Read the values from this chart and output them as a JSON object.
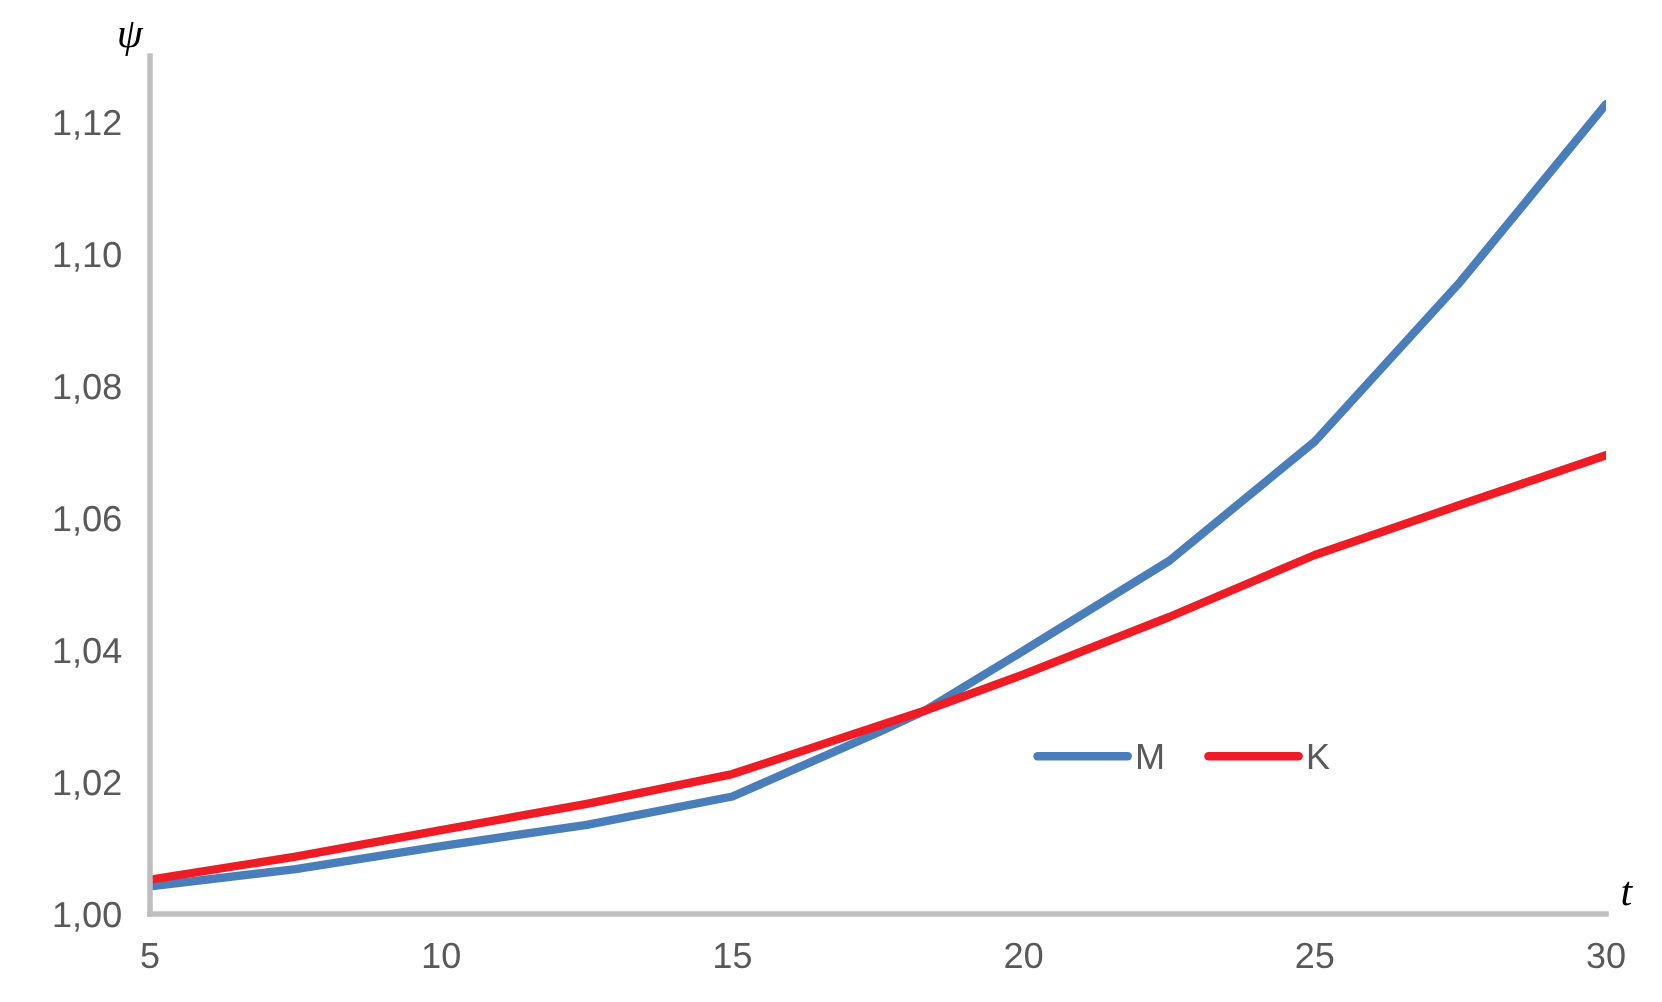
{
  "chart_data": {
    "type": "line",
    "xlabel": "t",
    "ylabel": "ψ",
    "xlim": [
      5,
      30
    ],
    "ylim": [
      1.0,
      1.13
    ],
    "xticks": [
      5,
      10,
      15,
      20,
      25,
      30
    ],
    "yticks": [
      {
        "value": 1.0,
        "label": "1,00"
      },
      {
        "value": 1.02,
        "label": "1,02"
      },
      {
        "value": 1.04,
        "label": "1,04"
      },
      {
        "value": 1.06,
        "label": "1,06"
      },
      {
        "value": 1.08,
        "label": "1,08"
      },
      {
        "value": 1.1,
        "label": "1,10"
      },
      {
        "value": 1.12,
        "label": "1,12"
      }
    ],
    "x": [
      5,
      7.5,
      10,
      12.5,
      15,
      17.5,
      18.3,
      20,
      22.5,
      25,
      27.5,
      30
    ],
    "series": [
      {
        "name": "M",
        "color": "#4a7ebb",
        "values": [
          1.0042,
          1.0068,
          1.0103,
          1.0135,
          1.0178,
          1.0275,
          1.0308,
          1.0399,
          1.0535,
          1.0716,
          1.0958,
          1.1227
        ]
      },
      {
        "name": "K",
        "color": "#ee1c25",
        "values": [
          1.0052,
          1.0087,
          1.0127,
          1.0167,
          1.0212,
          1.0285,
          1.0308,
          1.0363,
          1.045,
          1.0544,
          1.062,
          1.0695
        ]
      }
    ],
    "legend": "bottom right",
    "grid": false,
    "marker": "none",
    "line_style": "solid"
  }
}
